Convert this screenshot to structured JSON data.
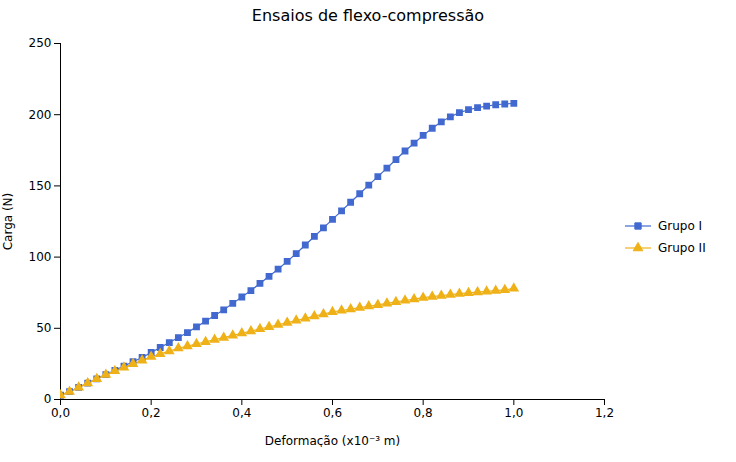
{
  "chart_data": {
    "type": "line",
    "title": "Ensaios de flexo-compressão",
    "x_label": "Deformação (x10⁻³ m)",
    "y_label": "Carga (N)",
    "x": [
      0.0,
      0.02,
      0.04,
      0.06,
      0.08,
      0.1,
      0.12,
      0.14,
      0.16,
      0.18,
      0.2,
      0.22,
      0.24,
      0.26,
      0.28,
      0.3,
      0.32,
      0.34,
      0.36,
      0.38,
      0.4,
      0.42,
      0.44,
      0.46,
      0.48,
      0.5,
      0.52,
      0.54,
      0.56,
      0.58,
      0.6,
      0.62,
      0.64,
      0.66,
      0.68,
      0.7,
      0.72,
      0.74,
      0.76,
      0.78,
      0.8,
      0.82,
      0.84,
      0.86,
      0.88,
      0.9,
      0.92,
      0.94,
      0.96,
      0.98,
      1.0
    ],
    "series": [
      {
        "name": "Grupo I",
        "marker": "square",
        "values": [
          3.0,
          5.5,
          8.5,
          11.5,
          14.5,
          17.5,
          20.5,
          23.5,
          26.5,
          29.5,
          33.0,
          36.5,
          40.0,
          43.5,
          47.0,
          51.0,
          55.0,
          59.0,
          63.0,
          67.5,
          72.0,
          76.5,
          81.5,
          86.5,
          91.5,
          97.0,
          102.5,
          108.5,
          114.5,
          120.5,
          126.5,
          132.5,
          138.5,
          144.5,
          150.5,
          156.5,
          162.5,
          168.5,
          174.5,
          180.0,
          185.5,
          190.5,
          195.0,
          198.5,
          201.5,
          203.5,
          205.0,
          206.0,
          207.0,
          207.5,
          208.0
        ]
      },
      {
        "name": "Grupo II",
        "marker": "triangle",
        "values": [
          3.0,
          5.5,
          8.5,
          11.5,
          14.5,
          17.5,
          20.0,
          22.5,
          25.0,
          27.5,
          30.0,
          32.0,
          34.0,
          36.0,
          37.5,
          39.0,
          40.5,
          42.0,
          43.5,
          45.0,
          46.5,
          48.0,
          49.5,
          51.0,
          52.5,
          54.0,
          55.5,
          57.0,
          58.5,
          60.0,
          61.5,
          62.5,
          63.5,
          64.5,
          65.5,
          66.5,
          67.5,
          68.5,
          69.5,
          70.5,
          71.5,
          72.3,
          73.0,
          73.7,
          74.3,
          74.9,
          75.4,
          75.9,
          76.4,
          77.0,
          78.0
        ]
      }
    ],
    "xlim": [
      0,
      1.2
    ],
    "ylim": [
      0,
      250
    ],
    "xticks": [
      {
        "value": 0.0,
        "label": "0,0"
      },
      {
        "value": 0.2,
        "label": "0,2"
      },
      {
        "value": 0.4,
        "label": "0,4"
      },
      {
        "value": 0.6,
        "label": "0,6"
      },
      {
        "value": 0.8,
        "label": "0,8"
      },
      {
        "value": 1.0,
        "label": "1,0"
      },
      {
        "value": 1.2,
        "label": "1,2"
      }
    ],
    "yticks": [
      0,
      50,
      100,
      150,
      200,
      250
    ],
    "grid": false,
    "legend": "right"
  }
}
